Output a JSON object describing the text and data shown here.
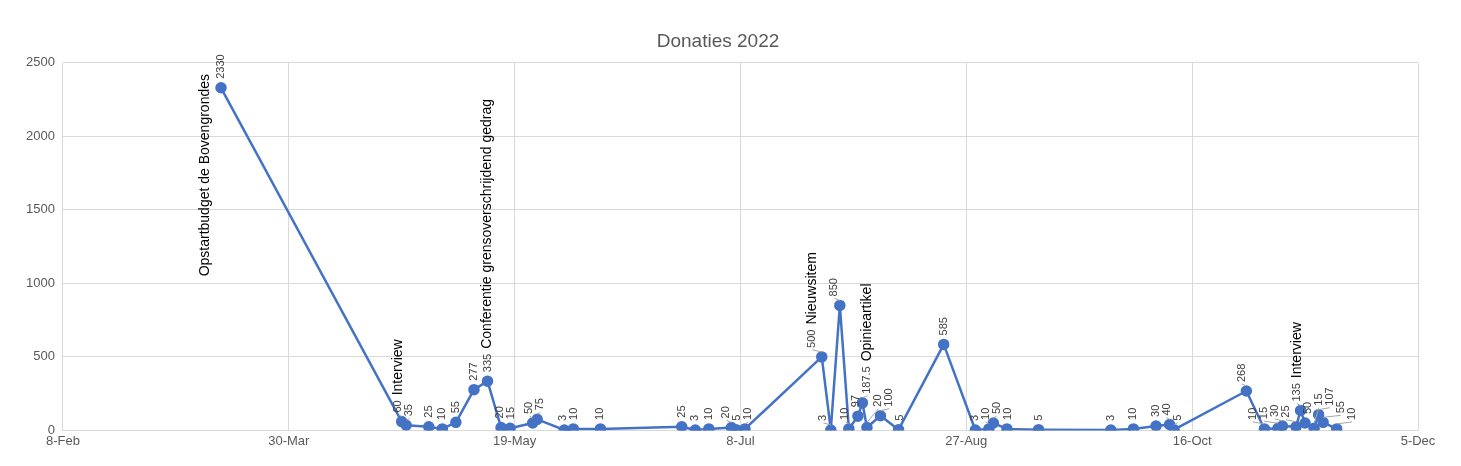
{
  "chart_data": {
    "type": "line",
    "title": "Donaties 2022",
    "color": "#4472c4",
    "marker": "circle",
    "data_labels": true,
    "grid": true,
    "legend": false,
    "x": [
      "2022-03-15",
      "2022-04-24",
      "2022-04-25",
      "2022-04-30",
      "2022-05-03",
      "2022-05-06",
      "2022-05-10",
      "2022-05-13",
      "2022-05-16",
      "2022-05-18",
      "2022-05-23",
      "2022-05-24",
      "2022-05-30",
      "2022-06-01",
      "2022-06-07",
      "2022-06-25",
      "2022-06-28",
      "2022-07-01",
      "2022-07-06",
      "2022-07-07",
      "2022-07-09",
      "2022-07-26",
      "2022-07-28",
      "2022-07-30",
      "2022-08-01",
      "2022-08-03",
      "2022-08-04",
      "2022-08-05",
      "2022-08-08",
      "2022-08-12",
      "2022-08-22",
      "2022-08-29",
      "2022-09-01",
      "2022-09-02",
      "2022-09-05",
      "2022-09-12",
      "2022-09-28",
      "2022-10-03",
      "2022-10-08",
      "2022-10-11",
      "2022-10-12",
      "2022-10-28",
      "2022-11-01",
      "2022-11-04",
      "2022-11-05",
      "2022-11-08",
      "2022-11-09",
      "2022-11-10",
      "2022-11-12",
      "2022-11-13",
      "2022-11-14",
      "2022-11-17"
    ],
    "values": [
      2330,
      60,
      35,
      25,
      10,
      55,
      277,
      335,
      20,
      15,
      50,
      75,
      3,
      10,
      10,
      25,
      3,
      10,
      20,
      5,
      10,
      500,
      3,
      850,
      10,
      97,
      187.5,
      20,
      100,
      5,
      585,
      3,
      10,
      50,
      10,
      5,
      3,
      10,
      30,
      40,
      5,
      268,
      10,
      15,
      30,
      25,
      135,
      50,
      15,
      107,
      55,
      10
    ],
    "xlim": [
      "2022-02-08",
      "2022-12-05"
    ],
    "xticks": [
      {
        "value": "2022-02-08",
        "label": "8-Feb"
      },
      {
        "value": "2022-03-30",
        "label": "30-Mar"
      },
      {
        "value": "2022-05-19",
        "label": "19-May"
      },
      {
        "value": "2022-07-08",
        "label": "8-Jul"
      },
      {
        "value": "2022-08-27",
        "label": "27-Aug"
      },
      {
        "value": "2022-10-16",
        "label": "16-Oct"
      },
      {
        "value": "2022-12-05",
        "label": "5-Dec"
      }
    ],
    "ylim": [
      0,
      2500
    ],
    "yticks": [
      0,
      500,
      1000,
      1500,
      2000,
      2500
    ],
    "annotations": [
      {
        "text": "Opstartbudget de Bovengrondes",
        "x": "2022-03-15",
        "y": 2330
      },
      {
        "text": "Interview",
        "x": "2022-04-24",
        "y": 60
      },
      {
        "text": "Conferentie grensoverschrijdend gedrag",
        "x": "2022-05-13",
        "y": 335
      },
      {
        "text": "Nieuwsitem",
        "x": "2022-07-26",
        "y": 500
      },
      {
        "text": "Opinieartikel",
        "x": "2022-08-04",
        "y": 187.5
      },
      {
        "text": "Interview",
        "x": "2022-11-09",
        "y": 135
      }
    ]
  }
}
